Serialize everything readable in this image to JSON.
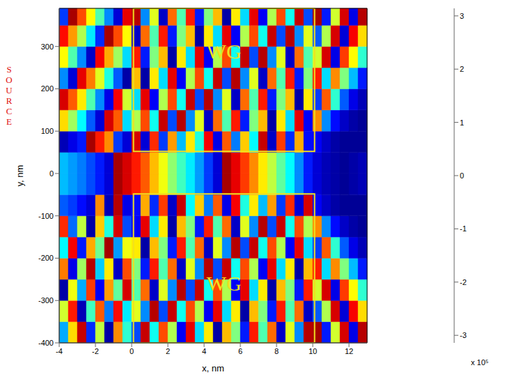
{
  "chart_data": {
    "type": "heatmap",
    "xlabel": "x, nm",
    "ylabel": "y, nm",
    "x_label_scale": "x 10⁵",
    "source_label": "SOURCE",
    "source_color": "#e01010",
    "xlim": [
      -4,
      13
    ],
    "ylim": [
      -400,
      390
    ],
    "xticks": [
      -4,
      -2,
      0,
      2,
      4,
      6,
      8,
      10,
      12
    ],
    "yticks": [
      -400,
      -300,
      -200,
      -100,
      0,
      100,
      200,
      300
    ],
    "regions": [
      {
        "label": "WG",
        "x": [
          0.1,
          10.1
        ],
        "y": [
          52,
          390
        ],
        "color": "#f0e020"
      },
      {
        "label": "WG",
        "x": [
          0.1,
          10.1
        ],
        "y": [
          -400,
          -48
        ],
        "color": "#f0e020"
      }
    ],
    "colorbar": {
      "range": [
        -3.1416,
        3.1416
      ],
      "ticks": [
        -3,
        -2,
        -1,
        0,
        1,
        2,
        3
      ]
    },
    "x_edges": [
      -4,
      -3.5,
      -3,
      -2.5,
      -2,
      -1.5,
      -1,
      -0.5,
      0,
      0.5,
      1,
      1.5,
      2,
      2.5,
      3,
      3.5,
      4,
      4.5,
      5,
      5.5,
      6,
      6.5,
      7,
      7.5,
      8,
      8.5,
      9,
      9.5,
      10,
      10.5,
      11,
      11.5,
      12,
      12.5,
      13
    ],
    "y_edges": [
      -400,
      -350,
      -300,
      -250,
      -200,
      -150,
      -100,
      -50,
      0,
      50,
      100,
      150,
      200,
      250,
      300,
      350,
      390
    ],
    "cells": [
      [
        -1.3,
        1.0,
        2.7,
        -2.1,
        0.4,
        -2.9,
        1.5,
        -0.5,
        -1.9,
        2.7,
        -0.7,
        1.9,
        0.3,
        -2.4,
        2.5,
        -1.0,
        0.9,
        -2.9,
        1.2,
        0.0,
        -2.2,
        2.2,
        -0.3,
        1.7,
        -2.7,
        0.6,
        -1.5,
        2.8,
        2.9,
        -2.2,
        0.5,
        2.6,
        -2.5,
        2.8
      ],
      [
        0.5,
        2.2,
        -2.8,
        -0.4,
        1.8,
        -1.6,
        2.3,
        -0.9,
        0.6,
        -1.5,
        2.8,
        -1.9,
        2.7,
        -0.7,
        1.9,
        0.3,
        -2.4,
        2.5,
        -1.0,
        0.9,
        -2.9,
        1.2,
        0.0,
        -2.2,
        2.2,
        -0.3,
        1.7,
        -2.7,
        -1.8,
        0.3,
        2.6,
        -2.6,
        2.4,
        1.0
      ],
      [
        -2.9,
        0.7,
        -1.3,
        2.0,
        -2.4,
        1.4,
        -0.2,
        2.6,
        -0.3,
        1.7,
        -2.7,
        0.6,
        -1.5,
        2.8,
        -1.9,
        2.7,
        -0.7,
        1.9,
        0.3,
        -2.4,
        2.5,
        -1.0,
        0.9,
        -2.9,
        1.2,
        0.0,
        -2.2,
        2.2,
        0.5,
        2.6,
        -2.5,
        2.0,
        0.8,
        -0.5
      ],
      [
        1.6,
        -2.5,
        0.2,
        2.8,
        -1.1,
        0.9,
        -2.7,
        1.9,
        0.0,
        -2.2,
        2.2,
        -0.3,
        1.7,
        -2.7,
        0.6,
        -1.5,
        2.8,
        -1.9,
        2.7,
        -0.7,
        1.9,
        0.3,
        -2.4,
        2.5,
        -1.0,
        0.9,
        -2.9,
        1.2,
        2.2,
        -1.0,
        1.5,
        0.0,
        -1.2,
        -2.2
      ],
      [
        -0.8,
        2.4,
        -2.2,
        1.3,
        -0.1,
        2.9,
        -1.4,
        0.7,
        0.9,
        -2.9,
        1.2,
        0.0,
        -2.2,
        2.2,
        -0.3,
        1.7,
        -2.7,
        0.6,
        -1.5,
        2.8,
        -1.9,
        2.7,
        -0.7,
        1.9,
        0.3,
        -2.4,
        2.5,
        -1.0,
        -2.0,
        1.8,
        -0.5,
        -1.8,
        -2.5,
        -2.8
      ],
      [
        2.1,
        -1.7,
        0.4,
        -2.9,
        1.1,
        -0.6,
        2.6,
        -1.9,
        -2.4,
        2.5,
        -1.0,
        0.9,
        -2.9,
        1.2,
        0.0,
        -2.2,
        2.2,
        -0.3,
        1.7,
        -2.7,
        0.6,
        -1.5,
        2.8,
        -1.9,
        2.7,
        -0.7,
        1.9,
        0.3,
        1.5,
        -1.5,
        -2.3,
        -2.7,
        -2.9,
        -3.0
      ],
      [
        -1.8,
        -2.0,
        -2.3,
        -2.6,
        1.5,
        -2.8,
        2.8,
        -2.5,
        -2.3,
        1.3,
        -2.1,
        2.0,
        -2.7,
        2.7,
        -0.8,
        1.1,
        -1.6,
        1.8,
        -2.5,
        2.4,
        -0.6,
        0.9,
        -1.2,
        1.4,
        -2.0,
        2.1,
        -2.6,
        2.6,
        -2.4,
        -2.7,
        -2.9,
        -3.0,
        -3.0,
        -3.0
      ],
      [
        -1.2,
        -1.4,
        -1.6,
        -1.9,
        -2.2,
        -2.6,
        2.9,
        2.6,
        2.2,
        1.8,
        1.2,
        0.7,
        0.1,
        -0.4,
        -0.9,
        -1.4,
        -2.0,
        -2.6,
        2.9,
        2.5,
        2.0,
        1.5,
        0.9,
        0.4,
        -0.2,
        -0.8,
        -1.5,
        -2.2,
        -2.6,
        -2.8,
        -2.9,
        -3.0,
        -2.9,
        -2.8
      ],
      [
        -1.2,
        -1.4,
        -1.6,
        -1.9,
        -2.2,
        -2.6,
        2.9,
        2.6,
        2.2,
        1.8,
        1.2,
        0.7,
        0.1,
        -0.4,
        -0.9,
        -1.4,
        -2.0,
        -2.6,
        2.9,
        2.5,
        2.0,
        1.5,
        0.9,
        0.4,
        -0.2,
        -0.8,
        -1.5,
        -2.2,
        -2.6,
        -2.8,
        -2.9,
        -3.0,
        -2.9,
        -2.8
      ],
      [
        -2.8,
        -2.5,
        -2.2,
        2.9,
        2.2,
        1.5,
        -2.0,
        -2.6,
        2.6,
        -2.6,
        2.1,
        -2.0,
        1.4,
        -1.2,
        0.9,
        -0.6,
        2.4,
        -2.5,
        1.8,
        -1.6,
        1.1,
        -0.8,
        2.7,
        -2.7,
        2.0,
        -2.1,
        1.3,
        -2.3,
        -2.4,
        -2.7,
        -2.9,
        -3.0,
        -3.0,
        -3.0
      ],
      [
        1.0,
        0.2,
        -0.8,
        -1.8,
        -2.6,
        2.6,
        1.8,
        -1.0,
        0.3,
        1.9,
        -0.7,
        2.7,
        -1.9,
        2.8,
        -1.5,
        0.6,
        -2.7,
        1.7,
        -0.3,
        2.2,
        -2.2,
        0.0,
        1.2,
        -2.9,
        0.9,
        -1.0,
        2.5,
        -2.4,
        1.5,
        -1.5,
        -2.3,
        -2.7,
        -2.9,
        -3.0
      ],
      [
        2.6,
        1.8,
        0.9,
        -0.3,
        -1.5,
        -2.5,
        2.4,
        0.5,
        -1.0,
        2.5,
        -2.4,
        0.3,
        1.9,
        -0.7,
        2.7,
        -1.9,
        2.8,
        -1.5,
        0.6,
        -2.7,
        1.7,
        -0.3,
        2.2,
        -2.2,
        0.0,
        1.2,
        -2.9,
        0.9,
        -2.0,
        1.8,
        -0.5,
        -1.8,
        -2.5,
        -2.8
      ],
      [
        -1.5,
        -2.6,
        2.5,
        1.6,
        0.6,
        -0.6,
        -1.8,
        -2.9,
        1.2,
        -2.9,
        0.9,
        -1.0,
        2.5,
        -2.4,
        0.3,
        1.9,
        -0.7,
        2.7,
        -1.9,
        2.8,
        -1.5,
        0.6,
        -2.7,
        1.7,
        -0.3,
        2.2,
        -2.2,
        0.0,
        2.2,
        -1.0,
        1.5,
        0.0,
        -1.2,
        -2.2
      ],
      [
        0.8,
        -0.3,
        -1.5,
        -2.7,
        2.4,
        1.3,
        0.2,
        -1.0,
        2.2,
        -2.2,
        0.0,
        1.2,
        -2.9,
        0.9,
        -1.0,
        2.5,
        -2.4,
        0.3,
        1.9,
        -0.7,
        2.7,
        -1.9,
        2.8,
        -1.5,
        0.6,
        -2.7,
        1.7,
        -0.3,
        0.5,
        2.6,
        -2.5,
        2.0,
        0.8,
        -0.5
      ],
      [
        2.3,
        1.4,
        0.3,
        -0.9,
        -2.1,
        2.9,
        1.9,
        0.8,
        -2.7,
        1.7,
        -0.3,
        2.2,
        -2.2,
        0.0,
        1.2,
        -2.9,
        0.9,
        -1.0,
        2.5,
        -2.4,
        0.3,
        1.9,
        -0.7,
        2.7,
        -1.9,
        2.8,
        -1.5,
        0.6,
        -1.8,
        0.3,
        2.6,
        -2.6,
        2.4,
        1.0
      ],
      [
        -2.0,
        2.9,
        1.9,
        0.8,
        -0.3,
        -1.5,
        -2.6,
        2.5,
        2.8,
        -1.5,
        0.6,
        -2.7,
        1.7,
        -0.3,
        2.2,
        -2.2,
        0.0,
        1.2,
        -2.9,
        0.9,
        -1.0,
        2.5,
        -2.4,
        0.3,
        1.9,
        -0.7,
        2.7,
        -1.9,
        2.9,
        -2.2,
        0.5,
        2.6,
        -2.5,
        2.8
      ]
    ]
  }
}
